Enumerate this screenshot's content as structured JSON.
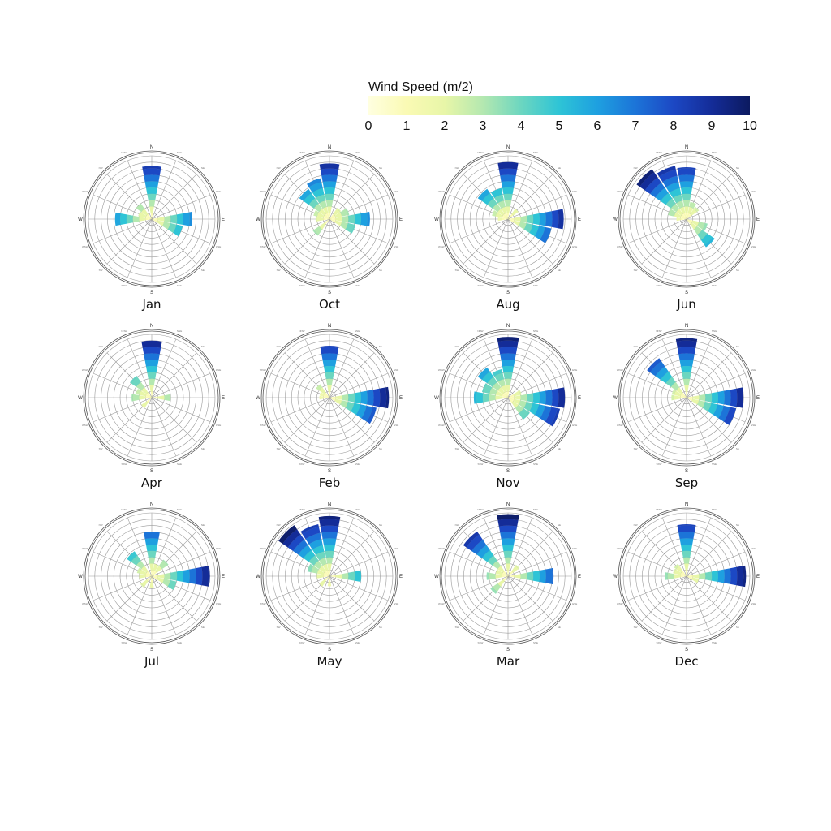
{
  "chart_data": {
    "type": "polar-bar",
    "colorbar": {
      "title": "Wind Speed (m/2)",
      "ticks": [
        "0",
        "1",
        "2",
        "3",
        "4",
        "5",
        "6",
        "7",
        "8",
        "9",
        "10"
      ],
      "range": [
        0,
        10
      ],
      "colors": [
        "#ffffe0",
        "#fafab4",
        "#e8f6a8",
        "#b4e8b0",
        "#6cd6c0",
        "#2ec4d6",
        "#1ea0e0",
        "#1c74d8",
        "#1c48c4",
        "#142c98",
        "#0c1a60"
      ]
    },
    "direction_labels": [
      "N",
      "E",
      "S",
      "W"
    ],
    "sector_directions": [
      "N",
      "NNE",
      "NE",
      "ENE",
      "E",
      "ESE",
      "SE",
      "SSE",
      "S",
      "SSW",
      "SW",
      "WSW",
      "W",
      "WNW",
      "NW",
      "NNW"
    ],
    "ring_max": 10,
    "months": [
      {
        "name": "Jan",
        "sectors": [
          {
            "dir": "N",
            "length": 8.4
          },
          {
            "dir": "NW",
            "length": 3.0
          },
          {
            "dir": "WNW",
            "length": 2.2
          },
          {
            "dir": "W",
            "length": 5.8
          },
          {
            "dir": "E",
            "length": 6.4
          },
          {
            "dir": "ESE",
            "length": 5.0
          }
        ]
      },
      {
        "name": "Apr",
        "sectors": [
          {
            "dir": "N",
            "length": 9.0
          },
          {
            "dir": "NW",
            "length": 4.2
          },
          {
            "dir": "WNW",
            "length": 2.6
          },
          {
            "dir": "W",
            "length": 3.2
          },
          {
            "dir": "SW",
            "length": 2.0
          },
          {
            "dir": "E",
            "length": 3.0
          }
        ]
      },
      {
        "name": "Jul",
        "sectors": [
          {
            "dir": "N",
            "length": 7.0
          },
          {
            "dir": "NNE",
            "length": 2.0
          },
          {
            "dir": "NE",
            "length": 3.2
          },
          {
            "dir": "NW",
            "length": 4.8
          },
          {
            "dir": "WNW",
            "length": 2.4
          },
          {
            "dir": "W",
            "length": 2.0
          },
          {
            "dir": "SW",
            "length": 2.2
          },
          {
            "dir": "S",
            "length": 1.8
          },
          {
            "dir": "E",
            "length": 9.2
          },
          {
            "dir": "ESE",
            "length": 4.0
          }
        ]
      },
      {
        "name": "Oct",
        "sectors": [
          {
            "dir": "N",
            "length": 8.8
          },
          {
            "dir": "NNW",
            "length": 6.6
          },
          {
            "dir": "NW",
            "length": 5.8
          },
          {
            "dir": "WNW",
            "length": 2.6
          },
          {
            "dir": "W",
            "length": 2.2
          },
          {
            "dir": "SW",
            "length": 3.2
          },
          {
            "dir": "NE",
            "length": 2.2
          },
          {
            "dir": "ENE",
            "length": 3.2
          },
          {
            "dir": "E",
            "length": 6.4
          },
          {
            "dir": "ESE",
            "length": 4.2
          }
        ]
      },
      {
        "name": "Feb",
        "sectors": [
          {
            "dir": "N",
            "length": 8.2
          },
          {
            "dir": "NW",
            "length": 2.6
          },
          {
            "dir": "WNW",
            "length": 1.6
          },
          {
            "dir": "W",
            "length": 1.6
          },
          {
            "dir": "E",
            "length": 9.4
          },
          {
            "dir": "ESE",
            "length": 7.6
          }
        ]
      },
      {
        "name": "May",
        "sectors": [
          {
            "dir": "N",
            "length": 9.5
          },
          {
            "dir": "NNW",
            "length": 8.4
          },
          {
            "dir": "NW",
            "length": 9.8
          },
          {
            "dir": "WNW",
            "length": 3.6
          },
          {
            "dir": "W",
            "length": 2.0
          },
          {
            "dir": "SW",
            "length": 2.0
          },
          {
            "dir": "S",
            "length": 1.6
          },
          {
            "dir": "E",
            "length": 5.0
          }
        ]
      },
      {
        "name": "Aug",
        "sectors": [
          {
            "dir": "N",
            "length": 9.0
          },
          {
            "dir": "NNW",
            "length": 5.0
          },
          {
            "dir": "NW",
            "length": 5.8
          },
          {
            "dir": "WNW",
            "length": 2.6
          },
          {
            "dir": "W",
            "length": 1.6
          },
          {
            "dir": "NE",
            "length": 2.0
          },
          {
            "dir": "E",
            "length": 8.8
          },
          {
            "dir": "ESE",
            "length": 7.0
          }
        ]
      },
      {
        "name": "Nov",
        "sectors": [
          {
            "dir": "N",
            "length": 9.6
          },
          {
            "dir": "NNW",
            "length": 4.6
          },
          {
            "dir": "NW",
            "length": 5.8
          },
          {
            "dir": "WNW",
            "length": 4.2
          },
          {
            "dir": "W",
            "length": 5.4
          },
          {
            "dir": "ENE",
            "length": 2.2
          },
          {
            "dir": "E",
            "length": 9.0
          },
          {
            "dir": "ESE",
            "length": 8.4
          },
          {
            "dir": "SE",
            "length": 4.2
          }
        ]
      },
      {
        "name": "Mar",
        "sectors": [
          {
            "dir": "N",
            "length": 9.8
          },
          {
            "dir": "NW",
            "length": 8.6
          },
          {
            "dir": "WNW",
            "length": 2.0
          },
          {
            "dir": "W",
            "length": 3.4
          },
          {
            "dir": "SW",
            "length": 3.4
          },
          {
            "dir": "NE",
            "length": 2.2
          },
          {
            "dir": "E",
            "length": 7.2
          }
        ]
      },
      {
        "name": "Jun",
        "sectors": [
          {
            "dir": "N",
            "length": 8.2
          },
          {
            "dir": "NNW",
            "length": 8.6
          },
          {
            "dir": "NW",
            "length": 9.6
          },
          {
            "dir": "WNW",
            "length": 3.0
          },
          {
            "dir": "NNE",
            "length": 2.8
          },
          {
            "dir": "NE",
            "length": 2.4
          },
          {
            "dir": "W",
            "length": 1.6
          },
          {
            "dir": "ESE",
            "length": 3.4
          },
          {
            "dir": "SE",
            "length": 5.4
          }
        ]
      },
      {
        "name": "Sep",
        "sectors": [
          {
            "dir": "N",
            "length": 9.4
          },
          {
            "dir": "NW",
            "length": 7.6
          },
          {
            "dir": "WNW",
            "length": 2.4
          },
          {
            "dir": "W",
            "length": 2.4
          },
          {
            "dir": "E",
            "length": 9.0
          },
          {
            "dir": "ESE",
            "length": 8.0
          }
        ]
      },
      {
        "name": "Dec",
        "sectors": [
          {
            "dir": "N",
            "length": 8.2
          },
          {
            "dir": "NW",
            "length": 2.4
          },
          {
            "dir": "WNW",
            "length": 2.2
          },
          {
            "dir": "W",
            "length": 3.4
          },
          {
            "dir": "E",
            "length": 9.4
          },
          {
            "dir": "ESE",
            "length": 2.0
          }
        ]
      }
    ]
  }
}
